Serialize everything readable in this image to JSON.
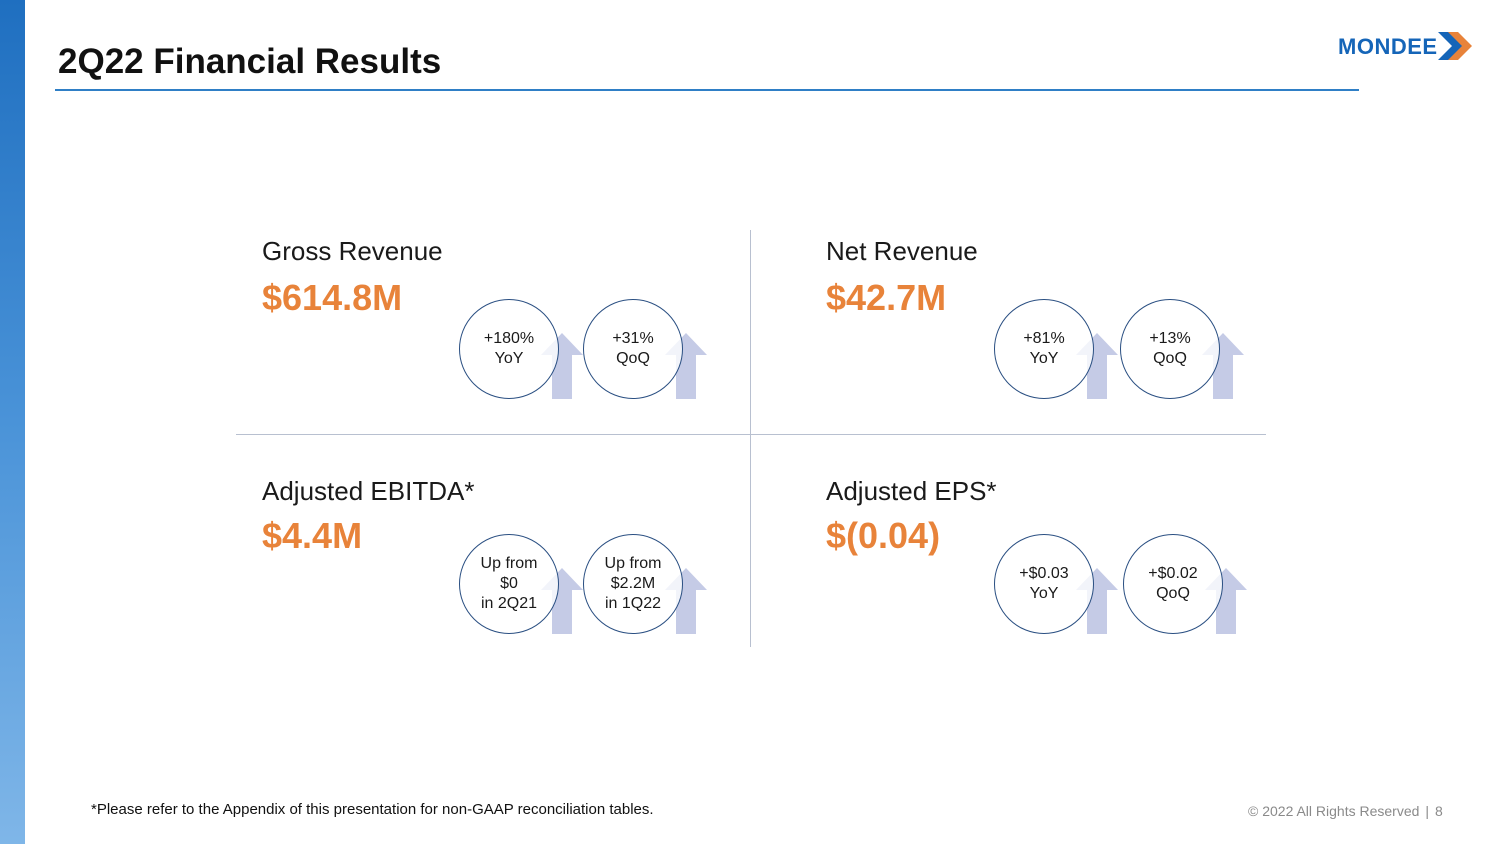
{
  "slide": {
    "title": "2Q22 Financial Results",
    "logo": {
      "text": "MONDEE",
      "icon": "mondee-arrow-mark-icon",
      "color": "#1565b8",
      "accent": "#e8833a"
    }
  },
  "colors": {
    "value": "#e8833a",
    "circle_border": "#2a4f82",
    "arrow": "#c5cbe6",
    "rule": "#2f7fc6"
  },
  "metrics": [
    {
      "label": "Gross Revenue",
      "value": "$614.8M",
      "badges": [
        {
          "lines": [
            "+180%",
            "YoY"
          ]
        },
        {
          "lines": [
            "+31%",
            "QoQ"
          ]
        }
      ]
    },
    {
      "label": "Net Revenue",
      "value": "$42.7M",
      "badges": [
        {
          "lines": [
            "+81%",
            "YoY"
          ]
        },
        {
          "lines": [
            "+13%",
            "QoQ"
          ]
        }
      ]
    },
    {
      "label": "Adjusted EBITDA*",
      "value": "$4.4M",
      "badges": [
        {
          "lines": [
            "Up from",
            "$0",
            "in 2Q21"
          ]
        },
        {
          "lines": [
            "Up from",
            "$2.2M",
            "in 1Q22"
          ]
        }
      ]
    },
    {
      "label": "Adjusted EPS*",
      "value": "$(0.04)",
      "badges": [
        {
          "lines": [
            "+$0.03",
            "YoY"
          ]
        },
        {
          "lines": [
            "+$0.02",
            "QoQ"
          ]
        }
      ]
    }
  ],
  "footer": {
    "note": "*Please refer to the Appendix of this presentation for non-GAAP reconciliation tables.",
    "copyright": "© 2022 All Rights Reserved",
    "separator": "|",
    "page_number": "8"
  }
}
